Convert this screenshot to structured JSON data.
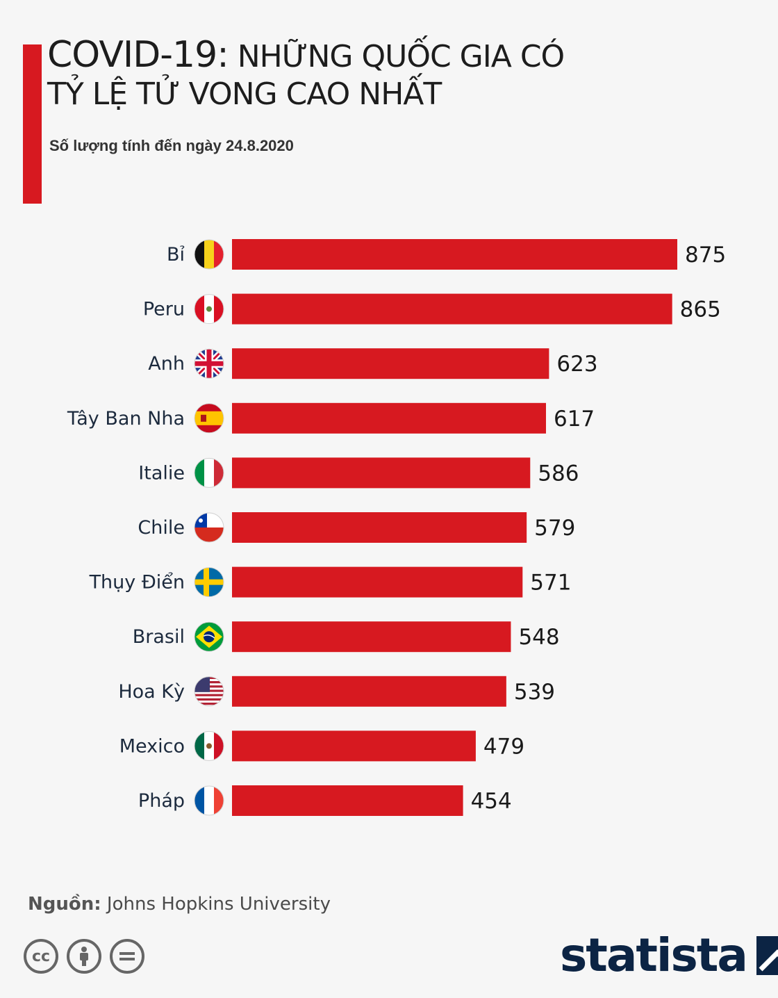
{
  "header": {
    "title_part1": "COVID-19:",
    "title_part2": "NHỮNG QUỐC GIA CÓ",
    "title_line2": "TỶ LỆ TỬ VONG CAO NHẤT",
    "subtitle": "Số lượng tính đến ngày 24.8.2020"
  },
  "chart_data": {
    "type": "bar",
    "orientation": "horizontal",
    "categories": [
      "Bỉ",
      "Peru",
      "Anh",
      "Tây Ban Nha",
      "Italie",
      "Chile",
      "Thụy Điển",
      "Brasil",
      "Hoa Kỳ",
      "Mexico",
      "Pháp"
    ],
    "values": [
      875,
      865,
      623,
      617,
      586,
      579,
      571,
      548,
      539,
      479,
      454
    ],
    "value_labels": [
      "875",
      "865",
      "623",
      "617",
      "586",
      "579",
      "571",
      "548",
      "539",
      "479",
      "454"
    ],
    "flag_icons": [
      "belgium-flag-icon",
      "peru-flag-icon",
      "uk-flag-icon",
      "spain-flag-icon",
      "italy-flag-icon",
      "chile-flag-icon",
      "sweden-flag-icon",
      "brazil-flag-icon",
      "usa-flag-icon",
      "mexico-flag-icon",
      "france-flag-icon"
    ],
    "bar_color": "#d71920",
    "xlim": [
      0,
      875
    ],
    "grid": false,
    "legend": "none"
  },
  "footer": {
    "source_key": "Nguồn:",
    "source_value": "Johns Hopkins University",
    "license_icons": [
      "cc-icon",
      "attribution-icon",
      "no-derivatives-icon"
    ],
    "brand": "statista"
  },
  "colors": {
    "accent": "#d71920",
    "brand": "#0c2444",
    "background": "#f6f6f6"
  }
}
